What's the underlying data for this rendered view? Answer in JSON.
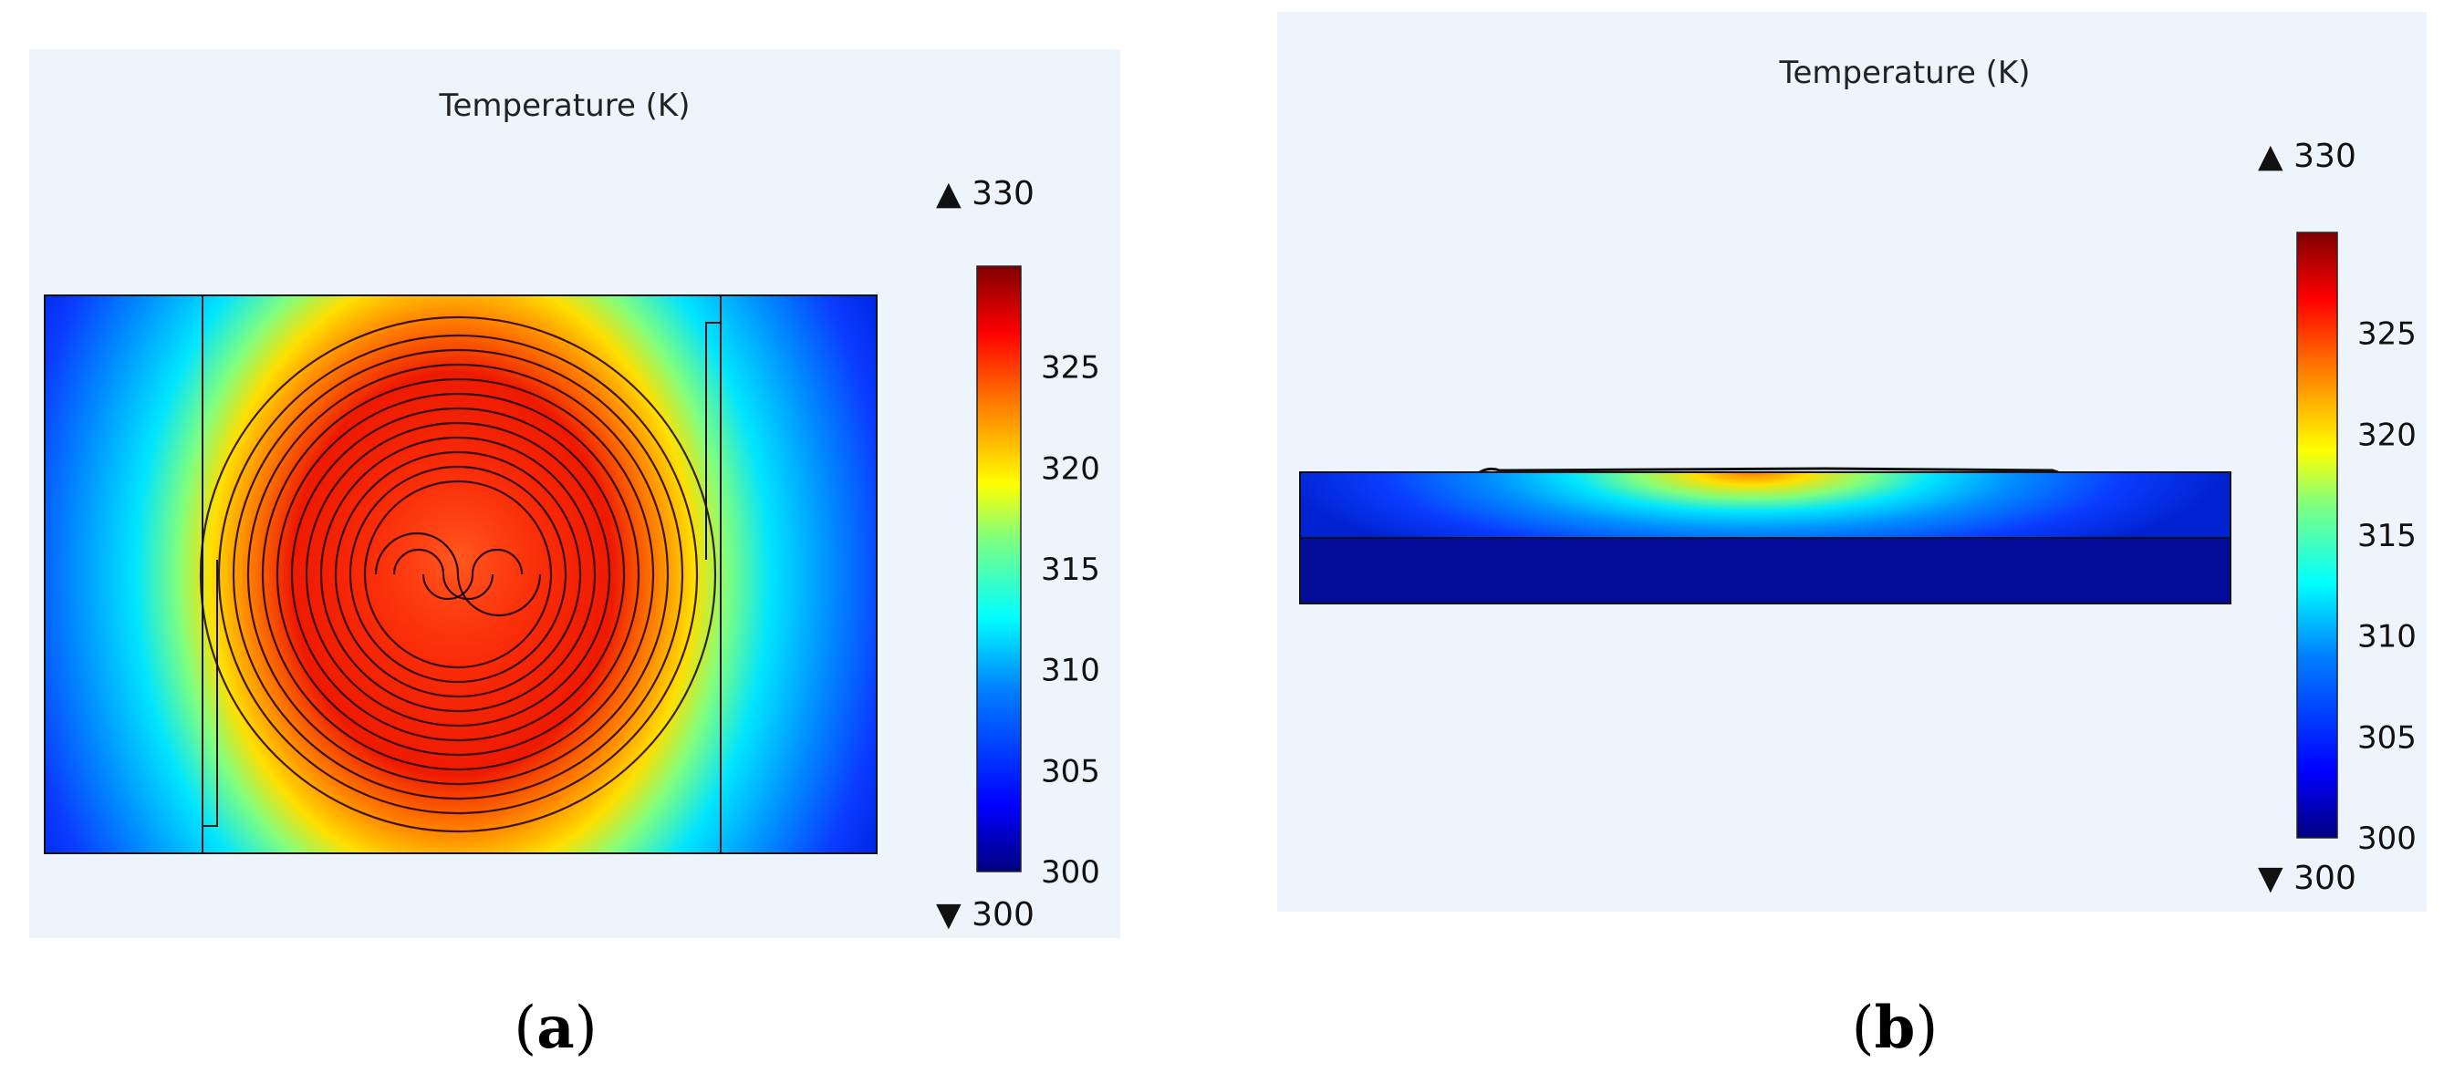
{
  "panels": [
    {
      "id": "a",
      "caption_open": "(",
      "caption_letter": "a",
      "caption_close": ")",
      "title": "Temperature (K)",
      "view": "top",
      "colorbar": {
        "min": 300,
        "max": 330,
        "max_label": "▲ 330",
        "min_label": "▼ 300",
        "ticks": [
          "325",
          "320",
          "315",
          "310",
          "305",
          "300"
        ]
      }
    },
    {
      "id": "b",
      "caption_open": "(",
      "caption_letter": "b",
      "caption_close": ")",
      "title": "Temperature (K)",
      "view": "cross-section",
      "colorbar": {
        "min": 300,
        "max": 330,
        "max_label": "▲ 330",
        "min_label": "▼ 300",
        "ticks": [
          "325",
          "320",
          "315",
          "310",
          "305",
          "300"
        ]
      }
    }
  ],
  "colors": {
    "background": "#eef4fb",
    "colormap": [
      "#00007f",
      "#0000ff",
      "#007fff",
      "#00ffff",
      "#7fff7f",
      "#ffff00",
      "#ff7f00",
      "#ff0000",
      "#7f0000"
    ]
  }
}
